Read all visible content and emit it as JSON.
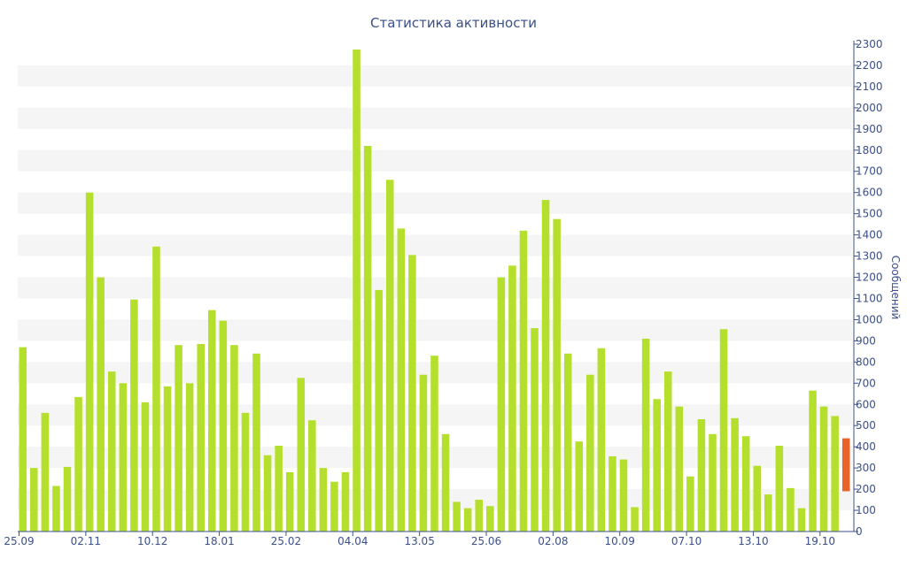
{
  "chart_data": {
    "type": "bar",
    "title": "Статистика активности",
    "ylabel": "Сообщений",
    "xlabel": "",
    "ylim": [
      0,
      2300
    ],
    "y_ticks": [
      0,
      100,
      200,
      300,
      400,
      500,
      600,
      700,
      800,
      900,
      1000,
      1100,
      1200,
      1300,
      1400,
      1500,
      1600,
      1700,
      1800,
      1900,
      2000,
      2100,
      2200,
      2300
    ],
    "x_tick_labels": [
      {
        "index": 0,
        "label": "25.09"
      },
      {
        "index": 6,
        "label": "02.11"
      },
      {
        "index": 12,
        "label": "10.12"
      },
      {
        "index": 18,
        "label": "18.01"
      },
      {
        "index": 24,
        "label": "25.02"
      },
      {
        "index": 30,
        "label": "04.04"
      },
      {
        "index": 36,
        "label": "13.05"
      },
      {
        "index": 42,
        "label": "25.06"
      },
      {
        "index": 48,
        "label": "02.08"
      },
      {
        "index": 54,
        "label": "10.09"
      },
      {
        "index": 60,
        "label": "07.10"
      },
      {
        "index": 66,
        "label": "13.10"
      },
      {
        "index": 72,
        "label": "19.10"
      }
    ],
    "grid": "horizontal bands",
    "colors": {
      "bar": "#b5df2d",
      "current": "#e8632a",
      "axis": "#3a4f8c",
      "band": "#f5f5f5"
    },
    "values": [
      870,
      300,
      560,
      215,
      305,
      635,
      1600,
      1200,
      755,
      700,
      1095,
      610,
      1345,
      685,
      880,
      700,
      885,
      1045,
      995,
      880,
      560,
      840,
      360,
      405,
      280,
      725,
      525,
      300,
      235,
      280,
      2275,
      1820,
      1140,
      1660,
      1430,
      1305,
      740,
      830,
      460,
      140,
      110,
      150,
      120,
      1200,
      1255,
      1420,
      960,
      1565,
      1475,
      840,
      425,
      740,
      865,
      355,
      340,
      115,
      910,
      625,
      755,
      590,
      260,
      530,
      460,
      955,
      535,
      450,
      310,
      175,
      405,
      205,
      110,
      665,
      590,
      545
    ],
    "current": {
      "low": 190,
      "high": 440
    }
  }
}
